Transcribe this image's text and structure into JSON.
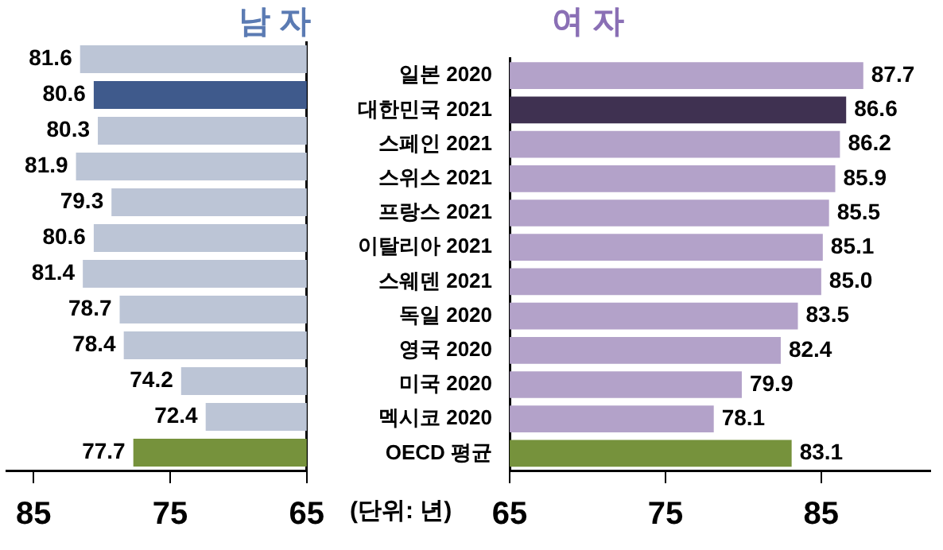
{
  "chart_data": [
    {
      "type": "bar",
      "orientation": "horizontal",
      "title": "남 자",
      "categories": [
        null,
        null,
        null,
        null,
        null,
        null,
        null,
        null,
        null,
        null,
        null,
        null
      ],
      "values": [
        81.6,
        80.6,
        80.3,
        81.9,
        79.3,
        80.6,
        81.4,
        78.7,
        78.4,
        74.2,
        72.4,
        77.7
      ],
      "colors": [
        "#bcc5d6",
        "#3f5a8c",
        "#bcc5d6",
        "#bcc5d6",
        "#bcc5d6",
        "#bcc5d6",
        "#bcc5d6",
        "#bcc5d6",
        "#bcc5d6",
        "#bcc5d6",
        "#bcc5d6",
        "#76923c"
      ],
      "xlim": [
        87,
        65
      ],
      "xticks": [
        85,
        75,
        65
      ],
      "data_labels": true,
      "grid": false,
      "legend": false,
      "annotations": [
        "(단위: 년)"
      ]
    },
    {
      "type": "bar",
      "orientation": "horizontal",
      "title": "여 자",
      "categories": [
        "일본 2020",
        "대한민국 2021",
        "스페인 2021",
        "스위스 2021",
        "프랑스 2021",
        "이탈리아 2021",
        "스웨덴 2021",
        "독일 2020",
        "영국 2020",
        "미국 2020",
        "멕시코 2020",
        "OECD 평균"
      ],
      "values": [
        87.7,
        86.6,
        86.2,
        85.9,
        85.5,
        85.1,
        85.0,
        83.5,
        82.4,
        79.9,
        78.1,
        83.1
      ],
      "colors": [
        "#b3a2c9",
        "#3f3151",
        "#b3a2c9",
        "#b3a2c9",
        "#b3a2c9",
        "#b3a2c9",
        "#b3a2c9",
        "#b3a2c9",
        "#b3a2c9",
        "#b3a2c9",
        "#b3a2c9",
        "#76923c"
      ],
      "value_labels": [
        "87.7",
        "86.6",
        "86.2",
        "85.9",
        "85.5",
        "85.1",
        "85.0",
        "83.5",
        "82.4",
        "79.9",
        "78.1",
        "83.1"
      ],
      "xlim": [
        65,
        92
      ],
      "xticks": [
        65,
        75,
        85
      ],
      "grid": false,
      "legend": false
    }
  ]
}
